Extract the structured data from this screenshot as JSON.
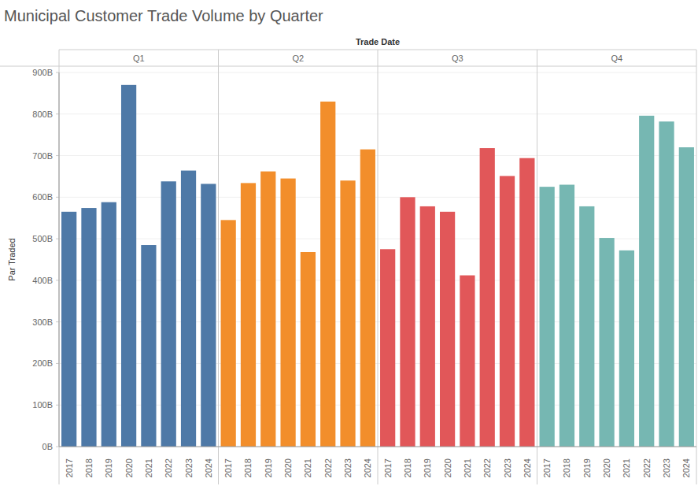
{
  "chart_data": {
    "type": "bar",
    "title": "Municipal Customer Trade Volume by Quarter",
    "xlabel": "Trade Date",
    "ylabel": "Par Traded",
    "categories": [
      "2017",
      "2018",
      "2019",
      "2020",
      "2021",
      "2022",
      "2023",
      "2024"
    ],
    "series": [
      {
        "name": "Q1",
        "color": "#4e79a7",
        "values": [
          565,
          574,
          588,
          870,
          485,
          638,
          664,
          632
        ]
      },
      {
        "name": "Q2",
        "color": "#f28e2b",
        "values": [
          545,
          634,
          662,
          645,
          468,
          830,
          640,
          715
        ]
      },
      {
        "name": "Q3",
        "color": "#e15759",
        "values": [
          475,
          600,
          578,
          565,
          412,
          718,
          651,
          694
        ]
      },
      {
        "name": "Q4",
        "color": "#76b7b2",
        "values": [
          625,
          630,
          578,
          502,
          472,
          796,
          782,
          720
        ]
      }
    ],
    "ylim": [
      0,
      900
    ],
    "yticks": [
      {
        "value": 0,
        "label": "0B"
      },
      {
        "value": 100,
        "label": "100B"
      },
      {
        "value": 200,
        "label": "200B"
      },
      {
        "value": 300,
        "label": "300B"
      },
      {
        "value": 400,
        "label": "400B"
      },
      {
        "value": 500,
        "label": "500B"
      },
      {
        "value": 600,
        "label": "600B"
      },
      {
        "value": 700,
        "label": "700B"
      },
      {
        "value": 800,
        "label": "800B"
      },
      {
        "value": 900,
        "label": "900B"
      }
    ],
    "grid": true
  }
}
